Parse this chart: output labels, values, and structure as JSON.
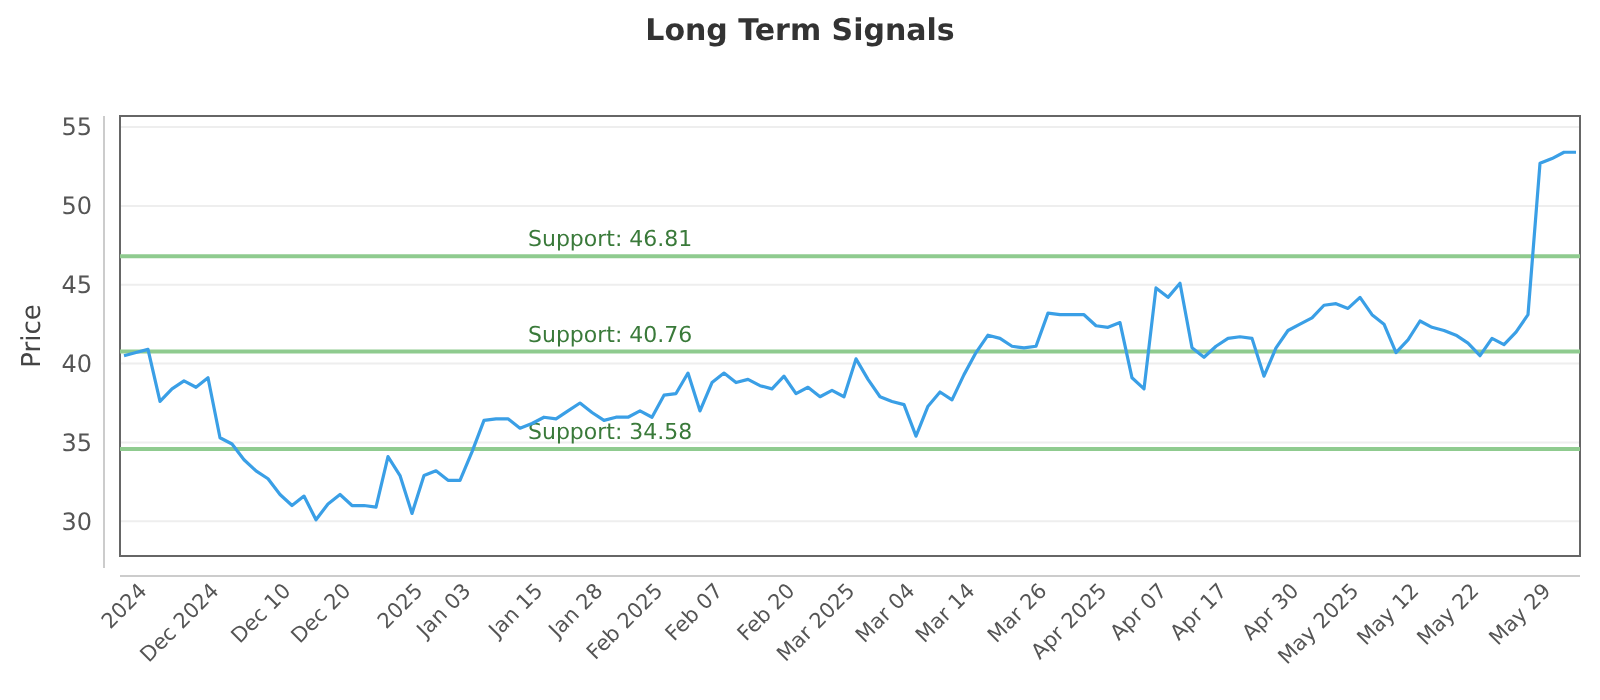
{
  "chart_data": {
    "type": "line",
    "title": "Long Term Signals",
    "ylabel": "Price",
    "categories": [
      null,
      null,
      "2024",
      null,
      null,
      null,
      null,
      null,
      "Dec 2024",
      null,
      null,
      null,
      null,
      null,
      "Dec 10",
      null,
      null,
      null,
      null,
      "Dec 20",
      null,
      null,
      null,
      null,
      null,
      "2025",
      null,
      null,
      null,
      "Jan 03",
      null,
      null,
      null,
      null,
      null,
      "Jan 15",
      null,
      null,
      null,
      null,
      "Jan 28",
      null,
      null,
      null,
      null,
      "Feb 2025",
      null,
      null,
      null,
      null,
      "Feb 07",
      null,
      null,
      null,
      null,
      null,
      "Feb 20",
      null,
      null,
      null,
      null,
      "Mar 2025",
      null,
      null,
      null,
      null,
      "Mar 04",
      null,
      null,
      null,
      null,
      "Mar 14",
      null,
      null,
      null,
      null,
      null,
      "Mar 26",
      null,
      null,
      null,
      null,
      "Apr 2025",
      null,
      null,
      null,
      null,
      "Apr 07",
      null,
      null,
      null,
      null,
      "Apr 17",
      null,
      null,
      null,
      null,
      null,
      "Apr 30",
      null,
      null,
      null,
      null,
      "May 2025",
      null,
      null,
      null,
      null,
      "May 12",
      null,
      null,
      null,
      null,
      "May 22",
      null,
      null,
      null,
      null,
      null,
      "May 29",
      null,
      null
    ],
    "series": [
      {
        "color": "#3a9fe6",
        "values": [
          40.5,
          40.7,
          40.9,
          37.6,
          38.4,
          38.9,
          38.5,
          39.1,
          35.3,
          34.9,
          33.9,
          33.2,
          32.7,
          31.7,
          31.0,
          31.6,
          30.1,
          31.1,
          31.7,
          31.0,
          31.0,
          30.9,
          34.1,
          32.9,
          30.5,
          32.9,
          33.2,
          32.6,
          32.6,
          34.4,
          36.4,
          36.5,
          36.5,
          35.9,
          36.2,
          36.6,
          36.5,
          37.0,
          37.5,
          36.9,
          36.4,
          36.6,
          36.6,
          37.0,
          36.6,
          38.0,
          38.1,
          39.4,
          37.0,
          38.8,
          39.4,
          38.8,
          39.0,
          38.6,
          38.4,
          39.2,
          38.1,
          38.5,
          37.9,
          38.3,
          37.9,
          40.3,
          39.0,
          37.9,
          37.6,
          37.4,
          35.4,
          37.3,
          38.2,
          37.7,
          39.3,
          40.7,
          41.8,
          41.6,
          41.1,
          41.0,
          41.1,
          43.2,
          43.1,
          43.1,
          43.1,
          42.4,
          42.3,
          42.6,
          39.1,
          38.4,
          44.8,
          44.2,
          45.1,
          41.0,
          40.4,
          41.1,
          41.6,
          41.7,
          41.6,
          39.2,
          41.0,
          42.1,
          42.5,
          42.9,
          43.7,
          43.8,
          43.5,
          44.2,
          43.1,
          42.5,
          40.7,
          41.5,
          42.7,
          42.3,
          42.1,
          41.8,
          41.3,
          40.5,
          41.6,
          41.2,
          42.0,
          43.1,
          52.7,
          53.0,
          53.4,
          53.4
        ]
      }
    ],
    "ylim": [
      27.8,
      55.7
    ],
    "yticks": [
      30,
      35,
      40,
      45,
      50,
      55
    ],
    "grid": "y",
    "marker": "none",
    "line_style": "solid",
    "ref_lines": [
      {
        "axis": "y",
        "value": 46.81,
        "label": "Support: 46.81",
        "color": "#8fcb8f"
      },
      {
        "axis": "y",
        "value": 40.76,
        "label": "Support: 40.76",
        "color": "#8fcb8f"
      },
      {
        "axis": "y",
        "value": 34.58,
        "label": "Support: 34.58",
        "color": "#8fcb8f"
      }
    ]
  }
}
